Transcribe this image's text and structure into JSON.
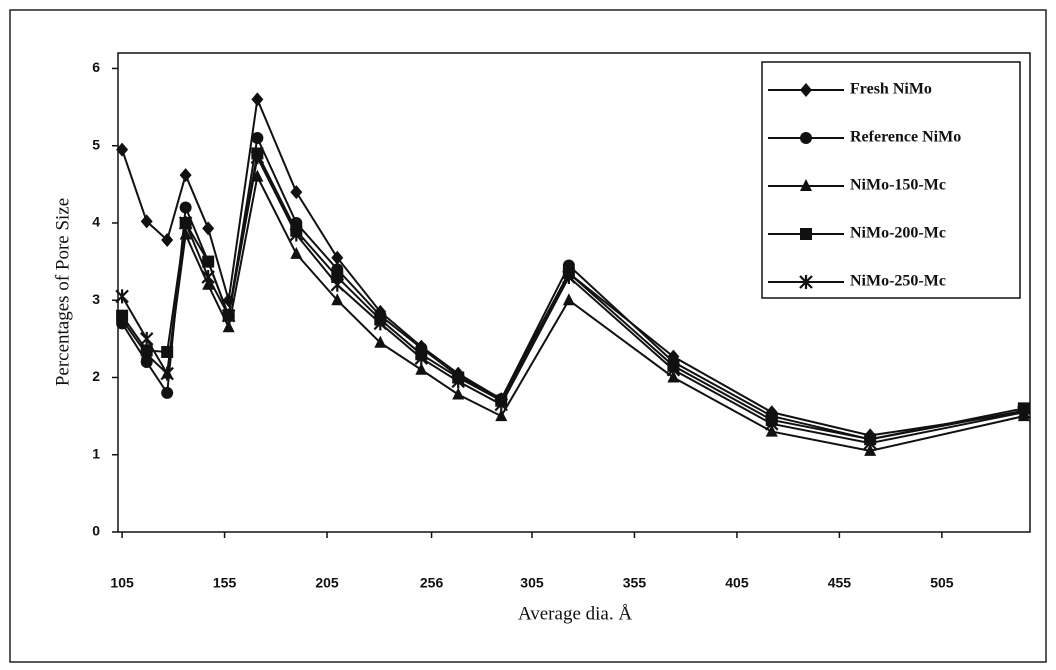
{
  "chart_data": {
    "type": "line",
    "xlabel": "Average dia. Å",
    "ylabel": "Percentages of Pore Size",
    "x": [
      105,
      117,
      127,
      136,
      147,
      157,
      171,
      190,
      210,
      231,
      251,
      269,
      290,
      323,
      374,
      422,
      470,
      545
    ],
    "series": [
      {
        "name": "Fresh NiMo",
        "color": "#111111",
        "marker": "diamond",
        "values": [
          4.95,
          4.02,
          3.78,
          4.62,
          3.93,
          3.0,
          5.6,
          4.4,
          3.55,
          2.85,
          2.4,
          2.05,
          1.72,
          3.35,
          2.27,
          1.55,
          1.25,
          1.55
        ]
      },
      {
        "name": "Reference NiMo",
        "color": "#111111",
        "marker": "circle",
        "values": [
          2.7,
          2.2,
          1.8,
          4.2,
          3.5,
          2.8,
          5.1,
          4.0,
          3.4,
          2.8,
          2.38,
          2.02,
          1.72,
          3.45,
          2.2,
          1.5,
          1.2,
          1.57
        ]
      },
      {
        "name": "NiMo-150-Mc",
        "color": "#111111",
        "marker": "triangle",
        "values": [
          2.75,
          2.3,
          2.05,
          3.85,
          3.2,
          2.65,
          4.6,
          3.6,
          3.0,
          2.45,
          2.1,
          1.78,
          1.5,
          3.0,
          2.0,
          1.3,
          1.05,
          1.5
        ]
      },
      {
        "name": "NiMo-200-Mc",
        "color": "#111111",
        "marker": "square",
        "values": [
          2.8,
          2.35,
          2.33,
          4.0,
          3.5,
          2.8,
          4.9,
          3.9,
          3.3,
          2.75,
          2.3,
          2.0,
          1.7,
          3.35,
          2.15,
          1.45,
          1.2,
          1.6
        ]
      },
      {
        "name": "NiMo-250-Mc",
        "color": "#111111",
        "marker": "star",
        "values": [
          3.05,
          2.5,
          2.05,
          4.0,
          3.3,
          2.8,
          4.85,
          3.85,
          3.2,
          2.7,
          2.25,
          1.95,
          1.65,
          3.3,
          2.1,
          1.4,
          1.15,
          1.55
        ]
      }
    ],
    "xlim": [
      103,
      548
    ],
    "xticks": [
      105,
      155,
      205,
      256,
      305,
      355,
      405,
      455,
      505
    ],
    "ylim": [
      0,
      6.2
    ],
    "yticks": [
      0,
      1,
      2,
      3,
      4,
      5,
      6
    ],
    "grid": false,
    "legend": "upper right"
  }
}
